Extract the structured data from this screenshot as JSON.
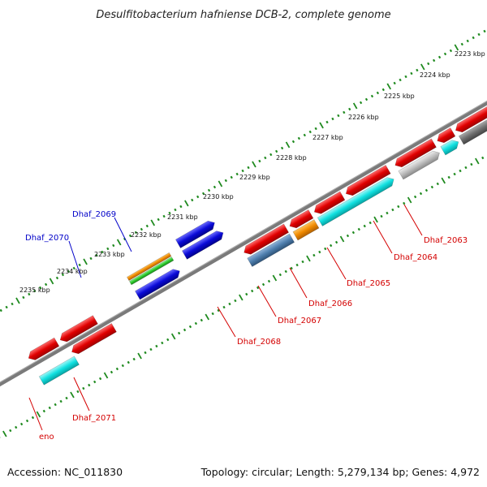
{
  "title": "Desulfitobacterium hafniense DCB-2, complete genome",
  "footer": {
    "accession": "Accession: NC_011830",
    "summary": "Topology: circular; Length: 5,279,134 bp; Genes: 4,972"
  },
  "ticks": [
    "2223 kbp",
    "2224 kbp",
    "2225 kbp",
    "2226 kbp",
    "2227 kbp",
    "2228 kbp",
    "2229 kbp",
    "2230 kbp",
    "2231 kbp",
    "2232 kbp",
    "2233 kbp",
    "2234 kbp",
    "2235 kbp"
  ],
  "gene_labels": [
    {
      "text": "Dhaf_2063",
      "color": "#d40000"
    },
    {
      "text": "Dhaf_2064",
      "color": "#d40000"
    },
    {
      "text": "Dhaf_2065",
      "color": "#d40000"
    },
    {
      "text": "Dhaf_2066",
      "color": "#d40000"
    },
    {
      "text": "Dhaf_2067",
      "color": "#d40000"
    },
    {
      "text": "Dhaf_2068",
      "color": "#d40000"
    },
    {
      "text": "Dhaf_2069",
      "color": "#0000c8"
    },
    {
      "text": "Dhaf_2070",
      "color": "#0000c8"
    },
    {
      "text": "Dhaf_2071",
      "color": "#d40000"
    },
    {
      "text": "eno",
      "color": "#d40000"
    }
  ],
  "colors": {
    "red": "#e00000",
    "blue": "#0a0ad8",
    "cyan": "#10e0e0",
    "orange": "#f08a00",
    "green": "#2ecb2e",
    "gray_dark": "#6e6e6e",
    "gray_light": "#bdbdbd",
    "steel": "#4f7fae",
    "backbone": "#808080",
    "tick": "#1f8a1f"
  }
}
